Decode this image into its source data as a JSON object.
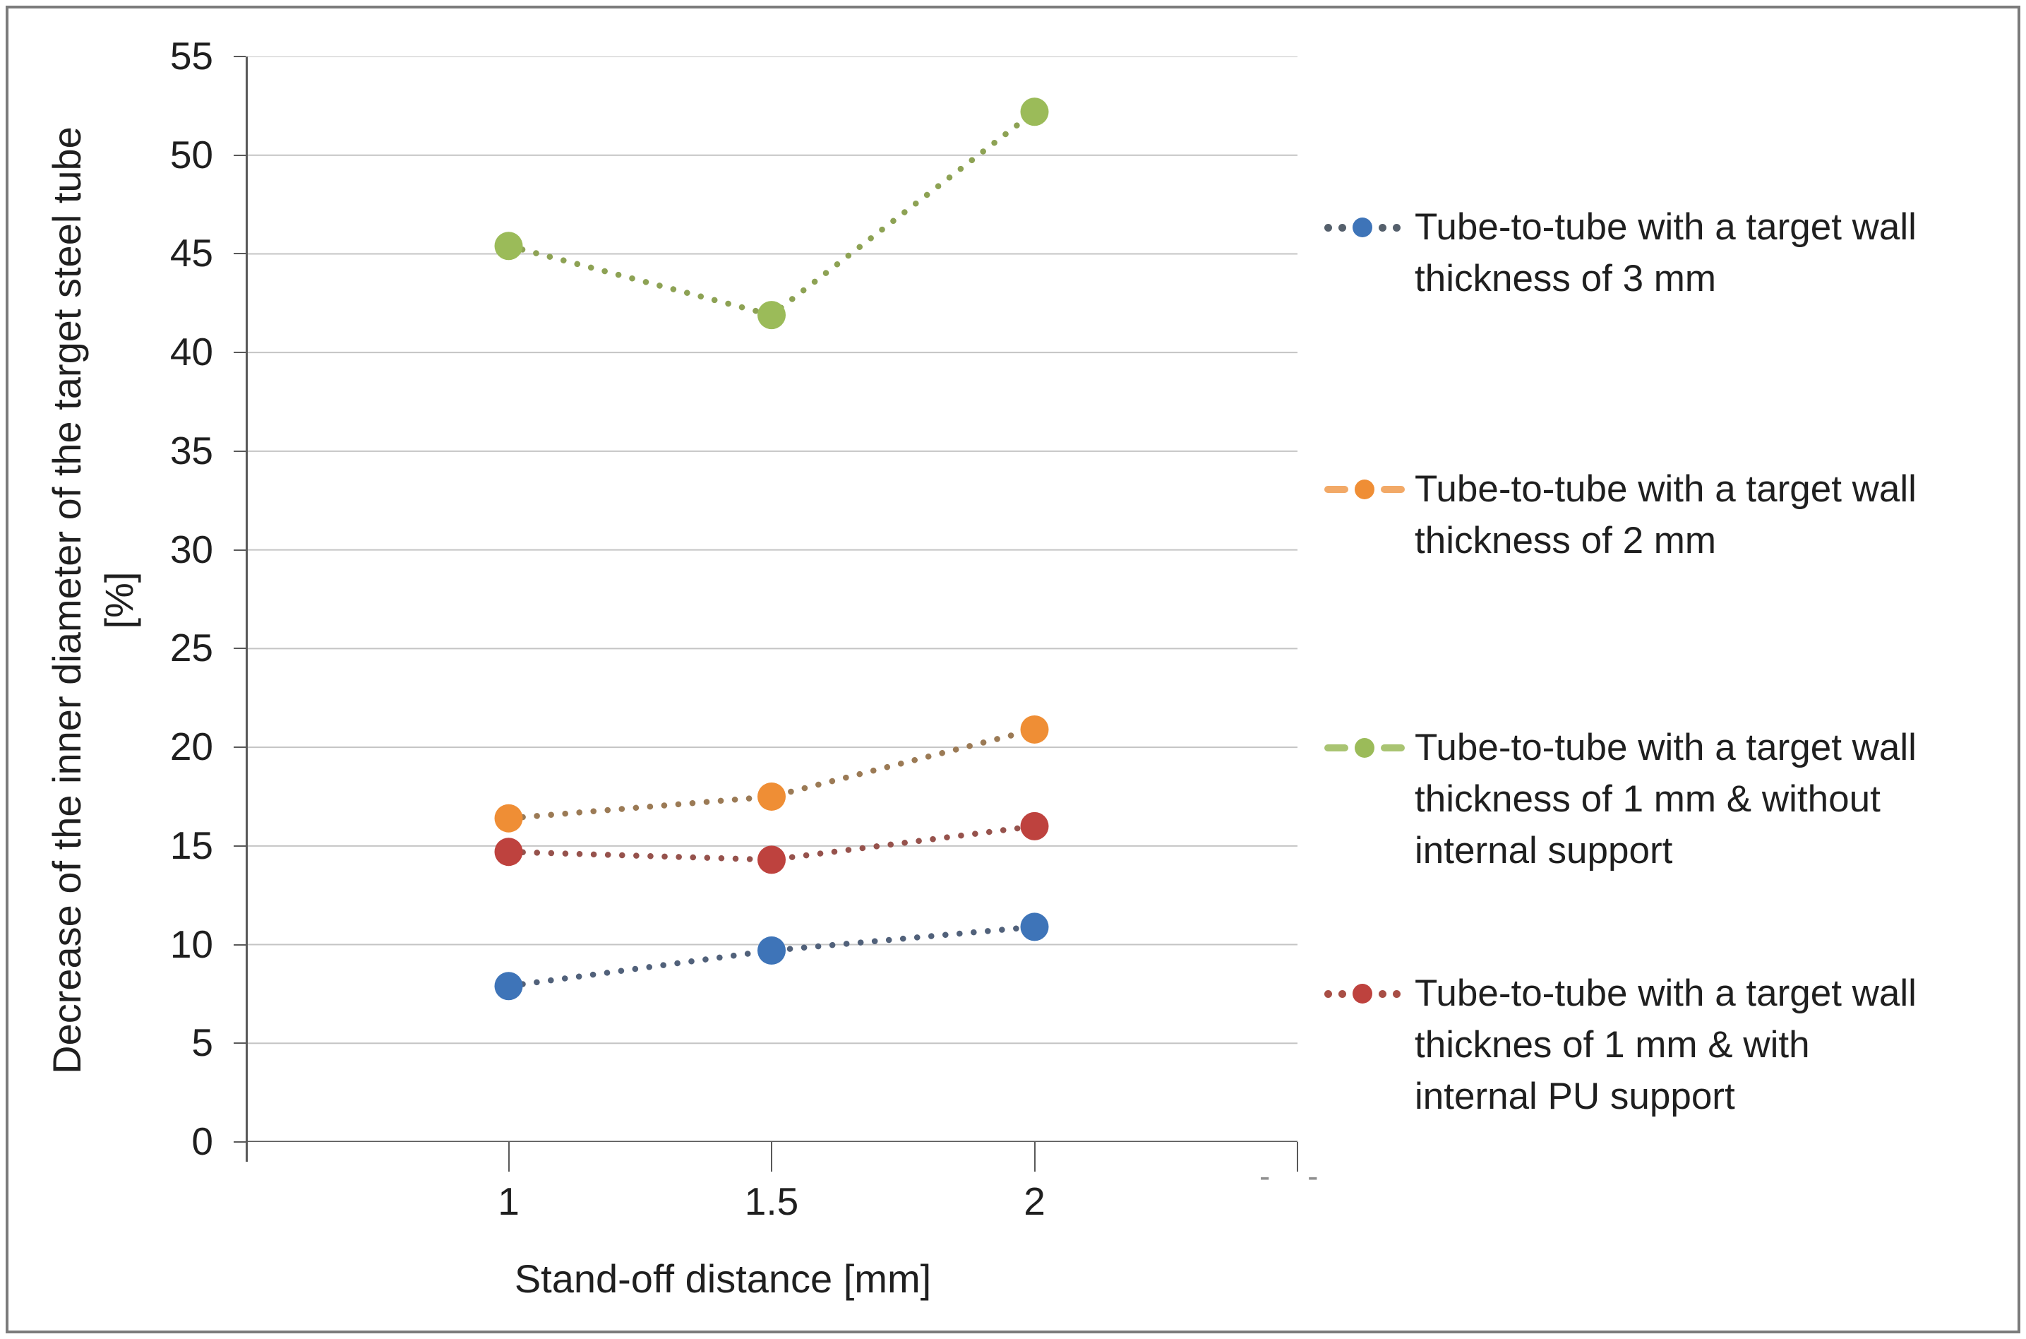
{
  "chart_data": {
    "type": "scatter",
    "title": "",
    "xlabel": "Stand-off distance [mm]",
    "ylabel_line1": "Decrease of the  inner diameter of  the target steel tube",
    "ylabel_line2": "[%]",
    "x_axis": {
      "tick_labels": [
        "1",
        "1.5",
        "2"
      ],
      "tick_values": [
        1,
        1.5,
        2
      ],
      "range": [
        0.5,
        2.5
      ]
    },
    "y_axis": {
      "tick_values": [
        0,
        5,
        10,
        15,
        20,
        25,
        30,
        35,
        40,
        45,
        50,
        55
      ],
      "range": [
        0,
        55
      ]
    },
    "grid": true,
    "legend_position": "right",
    "series": [
      {
        "name": "Tube-to-tube with a target wall thickness of 3 mm",
        "label_lines": [
          "Tube-to-tube with a target wall",
          "thickness of 3 mm"
        ],
        "marker_color": "#3E74B8",
        "line_color": "#51617A",
        "key_accent": "#55606C",
        "legend_marker": "dots",
        "x": [
          1,
          1.5,
          2
        ],
        "y": [
          7.9,
          9.7,
          10.9
        ]
      },
      {
        "name": "Tube-to-tube with a target wall thickness of 2 mm",
        "label_lines": [
          "Tube-to-tube with a target wall",
          "thickness of 2 mm"
        ],
        "marker_color": "#EF8E35",
        "line_color": "#9B7A55",
        "key_accent": "#F2A967",
        "legend_marker": "dashes",
        "x": [
          1,
          1.5,
          2
        ],
        "y": [
          16.4,
          17.5,
          20.9
        ]
      },
      {
        "name": "Tube-to-tube with a target wall thickness of 1 mm & without internal support",
        "label_lines": [
          "Tube-to-tube with a target wall",
          "thickness of 1 mm & without",
          "internal support"
        ],
        "marker_color": "#9BBB59",
        "line_color": "#8DA254",
        "key_accent": "#A9C472",
        "legend_marker": "dashes",
        "x": [
          1,
          1.5,
          2
        ],
        "y": [
          45.4,
          41.9,
          52.2
        ]
      },
      {
        "name": "Tube-to-tube with a target wall thicknes of 1 mm & with internal PU support",
        "label_lines": [
          "Tube-to-tube with a target wall",
          "thicknes of 1 mm & with",
          "internal PU support"
        ],
        "marker_color": "#BE423E",
        "line_color": "#96524C",
        "key_accent": "#A84E45",
        "legend_marker": "dots",
        "x": [
          1,
          1.5,
          2
        ],
        "y": [
          14.7,
          14.3,
          16.0
        ]
      }
    ],
    "stray_marks": "- -",
    "colors": {
      "gridline": "#c4c4c4",
      "axis": "#595959",
      "frame_border": "#7b7b7b",
      "text": "#1f1f1f"
    }
  }
}
